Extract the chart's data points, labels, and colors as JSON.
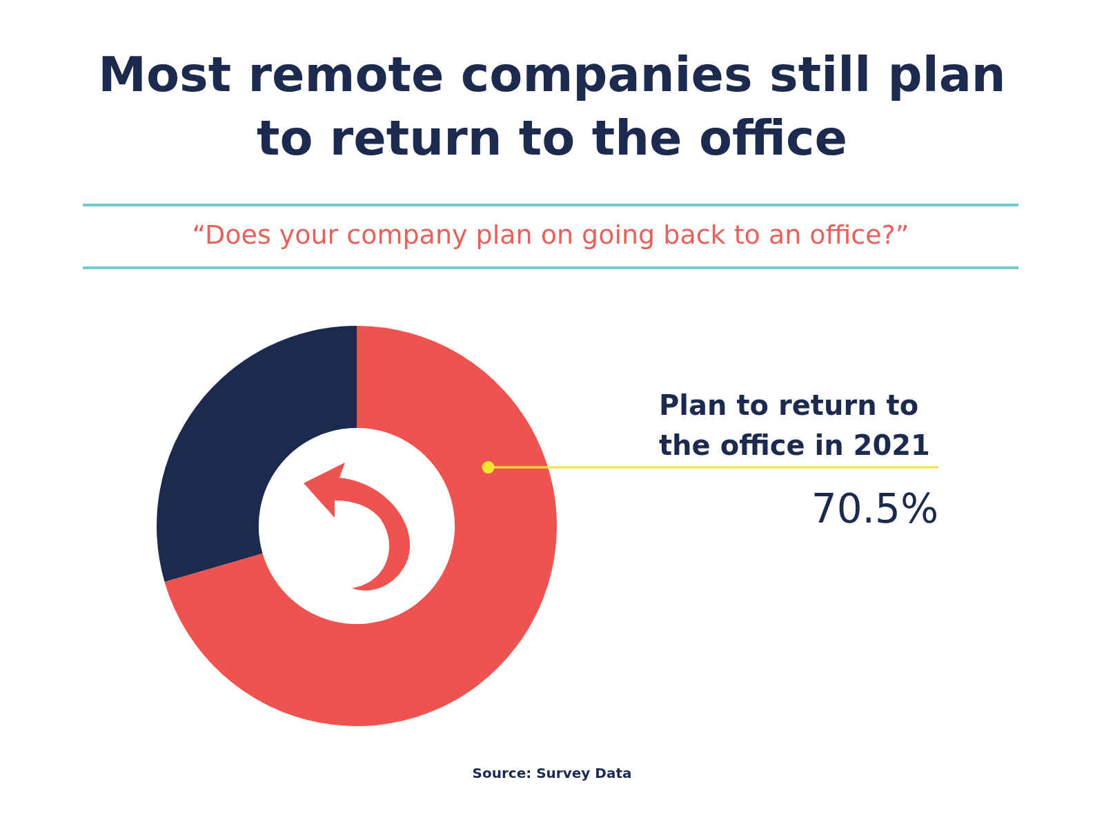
{
  "chart_data": {
    "type": "donut",
    "title": "Most remote companies still plan to return to the office",
    "subtitle": "“Does your company plan on going back to an office?”",
    "categories": [
      "Plan to return to the office in 2021",
      null
    ],
    "values": [
      70.5,
      29.5
    ],
    "colors": [
      "#ef5350",
      "#1b2a4e"
    ],
    "value_labels": [
      "70.5%",
      null
    ],
    "legend": false,
    "annotations": [
      "Source: Survey Data"
    ]
  }
}
